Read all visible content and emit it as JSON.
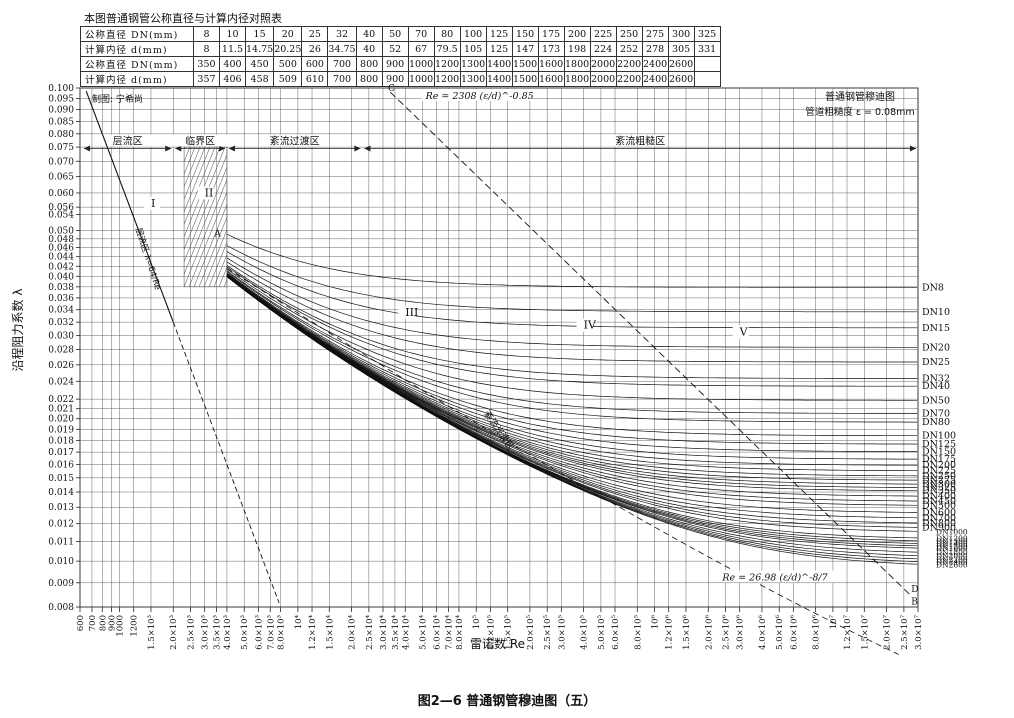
{
  "table": {
    "title": "本图普通钢管公称直径与计算内径对照表",
    "row_labels": [
      "公称直径 DN(mm)",
      "计算内径 d(mm)",
      "公称直径 DN(mm)",
      "计算内径 d(mm)"
    ],
    "dn_row1": [
      "8",
      "10",
      "15",
      "20",
      "25",
      "32",
      "40",
      "50",
      "70",
      "80",
      "100",
      "125",
      "150",
      "175",
      "200",
      "225",
      "250",
      "275",
      "300",
      "325"
    ],
    "d_row1": [
      "8",
      "11.5",
      "14.75",
      "20.25",
      "26",
      "34.75",
      "40",
      "52",
      "67",
      "79.5",
      "105",
      "125",
      "147",
      "173",
      "198",
      "224",
      "252",
      "278",
      "305",
      "331"
    ],
    "dn_row2": [
      "350",
      "400",
      "450",
      "500",
      "600",
      "700",
      "800",
      "900",
      "1000",
      "1200",
      "1300",
      "1400",
      "1500",
      "1600",
      "1800",
      "2000",
      "2200",
      "2400",
      "2600",
      ""
    ],
    "d_row2": [
      "357",
      "406",
      "458",
      "509",
      "610",
      "700",
      "800",
      "900",
      "1000",
      "1200",
      "1300",
      "1400",
      "1500",
      "1600",
      "1800",
      "2000",
      "2200",
      "2400",
      "2600",
      ""
    ]
  },
  "chart_data": {
    "type": "line",
    "title_lines": [
      "普通钢管穆迪图",
      "管道粗糙度 ε = 0.08mm"
    ],
    "author": "制图: 宁希尚",
    "xlabel": "雷诺数 Re",
    "ylabel": "沿程阻力系数 λ",
    "x_scale": "log",
    "y_scale": "log",
    "xlim": [
      600,
      30000000
    ],
    "ylim": [
      0.008,
      0.1
    ],
    "grid": true,
    "y_ticks": [
      0.1,
      0.095,
      0.09,
      0.085,
      0.08,
      0.075,
      0.07,
      0.065,
      0.06,
      0.056,
      0.054,
      0.05,
      0.048,
      0.046,
      0.044,
      0.042,
      0.04,
      0.038,
      0.036,
      0.034,
      0.032,
      0.03,
      0.028,
      0.026,
      0.024,
      0.022,
      0.021,
      0.02,
      0.019,
      0.018,
      0.017,
      0.016,
      0.015,
      0.014,
      0.013,
      0.012,
      0.011,
      0.01,
      0.009,
      0.008
    ],
    "y_tick_labels": [
      "0.100",
      "0.095",
      "0.090",
      "0.085",
      "0.080",
      "0.075",
      "0.070",
      "0.065",
      "0.060",
      "0.056",
      "0.054",
      "0.050",
      "0.048",
      "0.046",
      "0.044",
      "0.042",
      "0.040",
      "0.038",
      "0.036",
      "0.034",
      "0.032",
      "0.030",
      "0.028",
      "0.026",
      "0.024",
      "0.022",
      "0.021",
      "0.020",
      "0.019",
      "0.018",
      "0.017",
      "0.016",
      "0.015",
      "0.014",
      "0.013",
      "0.012",
      "0.011",
      "0.010",
      "0.009",
      "0.008"
    ],
    "x_ticks": [
      600,
      700,
      800,
      900,
      1000,
      1200,
      1500,
      2000,
      2500,
      3000,
      3500,
      4000,
      5000,
      6000,
      7000,
      8000,
      10000,
      12000,
      15000,
      20000,
      25000,
      30000,
      35000,
      40000,
      50000,
      60000,
      70000,
      80000,
      100000,
      120000,
      150000,
      200000,
      250000,
      300000,
      400000,
      500000,
      600000,
      800000,
      1000000,
      1200000,
      1500000,
      2000000,
      2500000,
      3000000,
      4000000,
      5000000,
      6000000,
      8000000,
      10000000,
      12000000,
      15000000,
      20000000,
      25000000,
      30000000
    ],
    "x_tick_labels": [
      "600",
      "700",
      "800",
      "900",
      "1000",
      "1200",
      "1.5×10³",
      "2.0×10³",
      "2.5×10³",
      "3.0×10³",
      "3.5×10³",
      "4.0×10³",
      "5.0×10³",
      "6.0×10³",
      "7.0×10³",
      "8.0×10³",
      "10⁴",
      "1.2×10⁴",
      "1.5×10⁴",
      "2.0×10⁴",
      "2.5×10⁴",
      "3.0×10⁴",
      "3.5×10⁴",
      "4.0×10⁴",
      "5.0×10⁴",
      "6.0×10⁴",
      "7.0×10⁴",
      "8.0×10⁴",
      "10⁵",
      "1.2×10⁵",
      "1.5×10⁵",
      "2.0×10⁵",
      "2.5×10⁵",
      "3.0×10⁵",
      "4.0×10⁵",
      "5.0×10⁵",
      "6.0×10⁵",
      "8.0×10⁵",
      "10⁶",
      "1.2×10⁶",
      "1.5×10⁶",
      "2.0×10⁶",
      "2.5×10⁶",
      "3.0×10⁶",
      "4.0×10⁶",
      "5.0×10⁶",
      "6.0×10⁶",
      "8.0×10⁶",
      "10⁷",
      "1.2×10⁷",
      "1.5×10⁷",
      "2.0×10⁷",
      "2.5×10⁷",
      "3.0×10⁷"
    ],
    "zones": [
      {
        "label": "层流区",
        "x_range": [
          600,
          2000
        ]
      },
      {
        "label": "临界区",
        "x_range": [
          2000,
          4000
        ]
      },
      {
        "label": "紊流过渡区",
        "x_range": [
          4000,
          23000
        ]
      },
      {
        "label": "紊流粗糙区",
        "x_range": [
          23000,
          30000000
        ]
      }
    ],
    "region_labels": [
      {
        "label": "I",
        "x": 1500,
        "y": 0.056
      },
      {
        "label": "II",
        "x": 3000,
        "y": 0.059
      },
      {
        "label": "III",
        "x": 40000,
        "y": 0.033
      },
      {
        "label": "IV",
        "x": 400000,
        "y": 0.031
      },
      {
        "label": "V",
        "x": 3000000,
        "y": 0.03
      }
    ],
    "laminar_line": {
      "label": "层流区 λ=64/Re",
      "equation": "λ = 64/Re",
      "x_range": [
        650,
        8000
      ]
    },
    "smooth_label": "紊流光滑区",
    "boundary_CD": {
      "label": "Re = 2308 (ε/d)^-0.85",
      "points": [
        "C",
        "D"
      ]
    },
    "boundary_B": {
      "label": "Re = 26.98 (ε/d)^-8/7",
      "points": [
        "A",
        "B"
      ]
    },
    "point_labels": [
      "A",
      "B",
      "C",
      "D"
    ],
    "epsilon_mm": 0.08,
    "series_labels": [
      "DN8",
      "DN10",
      "DN15",
      "DN20",
      "DN25",
      "DN32",
      "DN40",
      "DN50",
      "DN70",
      "DN80",
      "DN100",
      "DN125",
      "DN150",
      "DN175",
      "DN200",
      "DN225",
      "DN250",
      "DN275",
      "DN300",
      "DN325",
      "DN350",
      "DN400",
      "DN450",
      "DN500",
      "DN600",
      "DN700",
      "DN800",
      "DN900",
      "DN1000",
      "DN1200",
      "DN1300",
      "DN1400",
      "DN1500",
      "DN1600",
      "DN1800",
      "DN2000",
      "DN2200",
      "DN2400",
      "DN2600"
    ],
    "series_d_mm": [
      8,
      11.5,
      14.75,
      20.25,
      26,
      34.75,
      40,
      52,
      67,
      79.5,
      105,
      125,
      147,
      173,
      198,
      224,
      252,
      278,
      305,
      331,
      357,
      406,
      458,
      509,
      610,
      700,
      800,
      900,
      1000,
      1200,
      1300,
      1400,
      1500,
      1600,
      1800,
      2000,
      2200,
      2400,
      2600
    ]
  },
  "caption": "图2—6  普通钢管穆迪图（五）"
}
